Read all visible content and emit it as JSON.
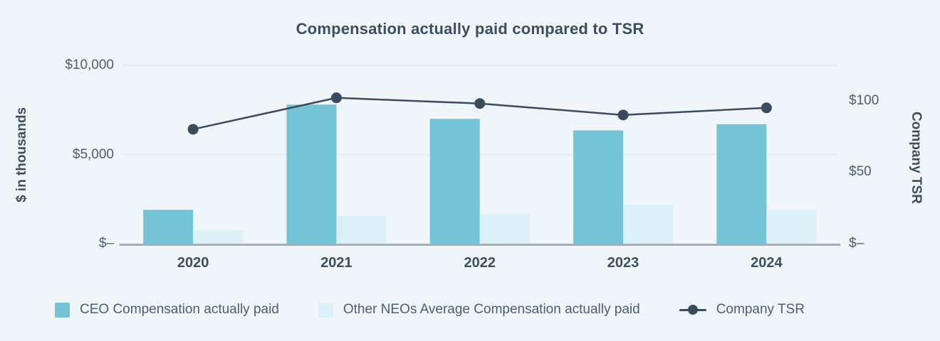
{
  "title": "Compensation actually paid compared to TSR",
  "colors": {
    "background": "#eff5f9",
    "ceo_bar": "#73c4d4",
    "neo_bar": "#dcf0f7",
    "tsr_line": "#3b4b5e",
    "gridline": "#e6e9ec",
    "axis_line": "#a8adb3",
    "tick_text": "#4c5d6e",
    "heading_text": "#3d4e60"
  },
  "chart_data": {
    "type": "bar",
    "subtype": "grouped-bar-with-line-overlay",
    "title": "Compensation actually paid compared to TSR",
    "categories": [
      "2020",
      "2021",
      "2022",
      "2023",
      "2024"
    ],
    "series": [
      {
        "name": "CEO Compensation actually paid",
        "type": "bar",
        "axis": "left",
        "color": "#73c4d4",
        "values": [
          1900,
          7800,
          7000,
          6350,
          6700
        ]
      },
      {
        "name": "Other NEOs Average Compensation actually paid",
        "type": "bar",
        "axis": "left",
        "color": "#dcf0f7",
        "values": [
          750,
          1550,
          1650,
          2200,
          1900
        ]
      },
      {
        "name": "Company TSR",
        "type": "line",
        "axis": "right",
        "color": "#3b4b5e",
        "marker": "circle",
        "values": [
          80,
          102,
          98,
          90,
          95
        ]
      }
    ],
    "left_axis": {
      "title": "$ in thousands",
      "ticks": [
        {
          "value": 10000,
          "label": "$10,000"
        },
        {
          "value": 5000,
          "label": "$5,000"
        },
        {
          "value": 0,
          "label": "$–"
        }
      ],
      "range": [
        0,
        10000
      ]
    },
    "right_axis": {
      "title": "Company TSR",
      "ticks": [
        {
          "value": 100,
          "label": "$100"
        },
        {
          "value": 50,
          "label": "$50"
        },
        {
          "value": 0,
          "label": "$–"
        }
      ],
      "range": [
        0,
        125
      ]
    },
    "grid": true,
    "legend_position": "bottom"
  },
  "legend": {
    "items": [
      {
        "label": "CEO Compensation actually paid",
        "marker": "square",
        "color": "#73c4d4"
      },
      {
        "label": "Other NEOs Average Compensation actually paid",
        "marker": "square",
        "color": "#dcf0f7"
      },
      {
        "label": "Company TSR",
        "marker": "line-dot",
        "color": "#3b4b5e"
      }
    ]
  }
}
